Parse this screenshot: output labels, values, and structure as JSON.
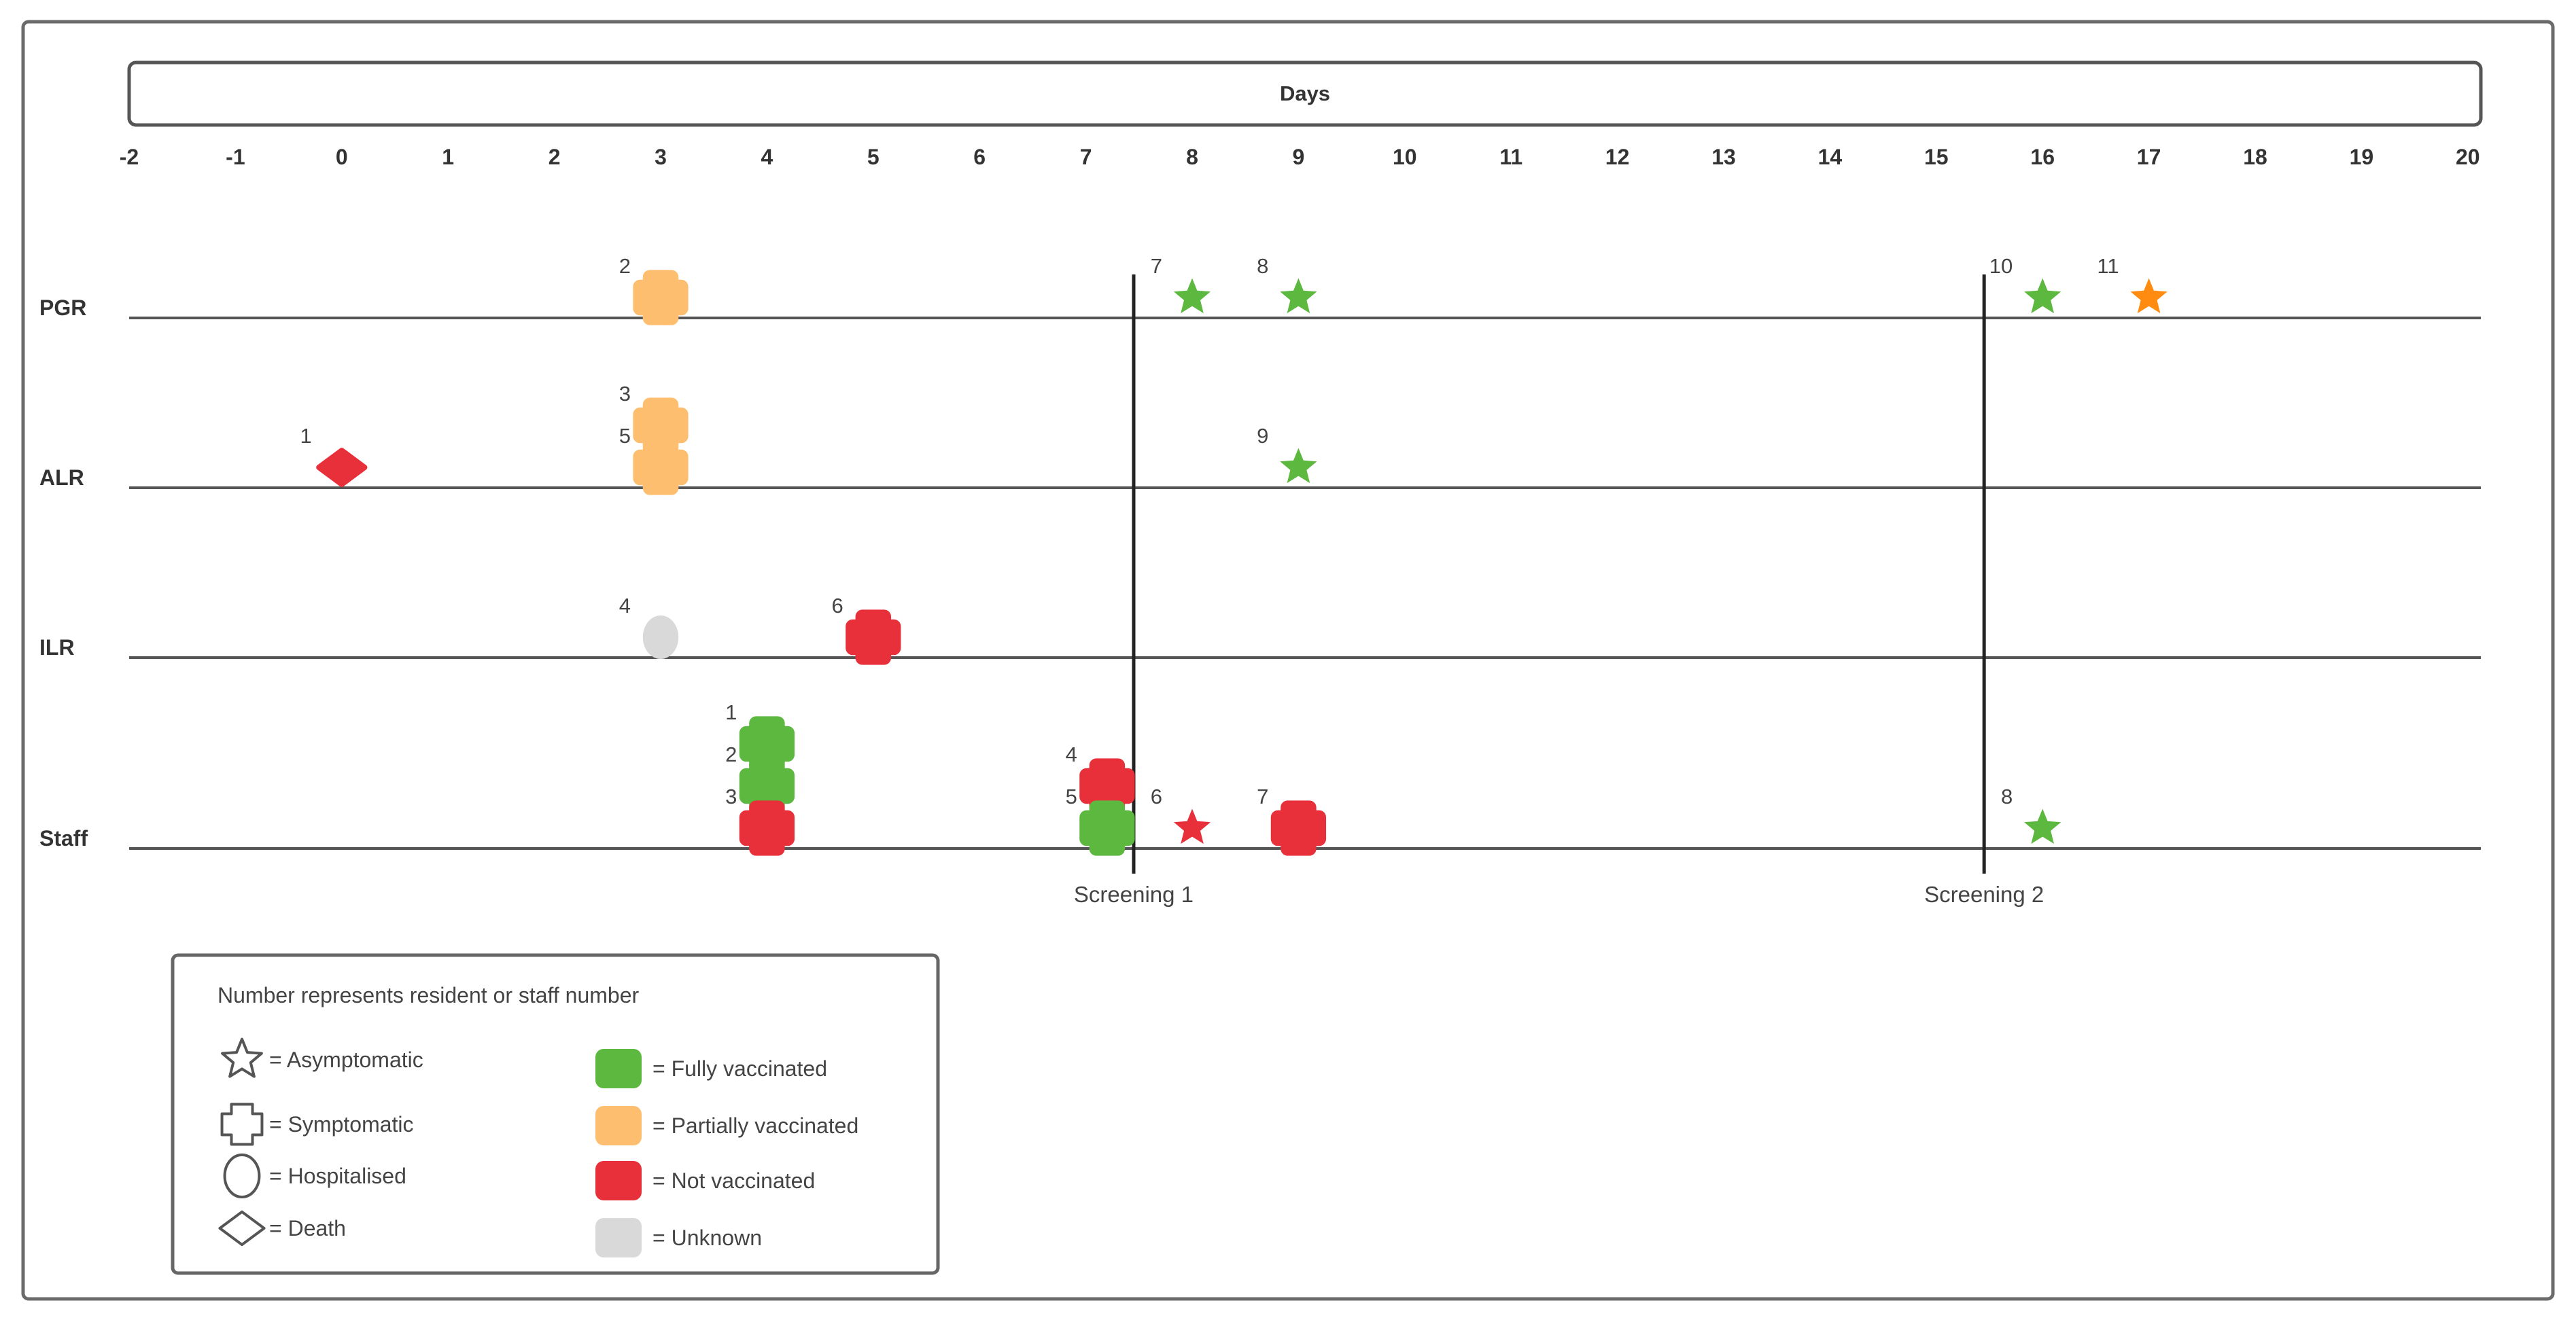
{
  "chart_data": {
    "type": "timeline",
    "title": "Days",
    "x_ticks": [
      "-2",
      "-1",
      "0",
      "1",
      "2",
      "3",
      "4",
      "5",
      "6",
      "7",
      "8",
      "9",
      "10",
      "11",
      "12",
      "13",
      "14",
      "15",
      "16",
      "17",
      "18",
      "19",
      "20"
    ],
    "xlim": [
      -2,
      20
    ],
    "rows": [
      "PGR",
      "ALR",
      "ILR",
      "Staff"
    ],
    "colors": {
      "fully": "#5cb83f",
      "partial": "#fdbf6f",
      "not": "#e8303a",
      "unknown": "#d9d9d9",
      "orange": "#ff8c10"
    },
    "points": [
      {
        "row": "PGR",
        "day": 3,
        "stack": 0,
        "shape": "symptomatic",
        "status": "partial",
        "label": "2"
      },
      {
        "row": "PGR",
        "day": 8,
        "stack": 0,
        "shape": "asymptomatic",
        "status": "fully",
        "label": "7"
      },
      {
        "row": "PGR",
        "day": 9,
        "stack": 0,
        "shape": "asymptomatic",
        "status": "fully",
        "label": "8"
      },
      {
        "row": "PGR",
        "day": 16,
        "stack": 0,
        "shape": "asymptomatic",
        "status": "fully",
        "label": "10"
      },
      {
        "row": "PGR",
        "day": 17,
        "stack": 0,
        "shape": "asymptomatic",
        "status": "orange",
        "label": "11"
      },
      {
        "row": "ALR",
        "day": 0,
        "stack": 0,
        "shape": "death",
        "status": "not",
        "label": "1"
      },
      {
        "row": "ALR",
        "day": 3,
        "stack": 1,
        "shape": "symptomatic",
        "status": "partial",
        "label": "3"
      },
      {
        "row": "ALR",
        "day": 3,
        "stack": 0,
        "shape": "symptomatic",
        "status": "partial",
        "label": "5"
      },
      {
        "row": "ALR",
        "day": 9,
        "stack": 0,
        "shape": "asymptomatic",
        "status": "fully",
        "label": "9"
      },
      {
        "row": "ILR",
        "day": 3,
        "stack": 0,
        "shape": "hospitalised",
        "status": "unknown",
        "label": "4"
      },
      {
        "row": "ILR",
        "day": 5,
        "stack": 0,
        "shape": "symptomatic",
        "status": "not",
        "label": "6"
      },
      {
        "row": "Staff",
        "day": 4,
        "stack": 2,
        "shape": "symptomatic",
        "status": "fully",
        "label": "1"
      },
      {
        "row": "Staff",
        "day": 4,
        "stack": 1,
        "shape": "symptomatic",
        "status": "fully",
        "label": "2"
      },
      {
        "row": "Staff",
        "day": 4,
        "stack": 0,
        "shape": "symptomatic",
        "status": "not",
        "label": "3"
      },
      {
        "row": "Staff",
        "day": 7.2,
        "stack": 1,
        "shape": "symptomatic",
        "status": "not",
        "label": "4"
      },
      {
        "row": "Staff",
        "day": 7.2,
        "stack": 0,
        "shape": "symptomatic",
        "status": "fully",
        "label": "5"
      },
      {
        "row": "Staff",
        "day": 8,
        "stack": 0,
        "shape": "asymptomatic",
        "status": "not",
        "label": "6"
      },
      {
        "row": "Staff",
        "day": 9,
        "stack": 0,
        "shape": "symptomatic",
        "status": "not",
        "label": "7"
      },
      {
        "row": "Staff",
        "day": 16,
        "stack": 0,
        "shape": "asymptomatic",
        "status": "fully",
        "label": "8"
      }
    ],
    "screenings": [
      {
        "day": 7.45,
        "label": "Screening 1"
      },
      {
        "day": 15.45,
        "label": "Screening 2"
      }
    ]
  },
  "legend": {
    "note": "Number represents resident or staff number",
    "shapes": [
      {
        "shape": "asymptomatic",
        "label": "= Asymptomatic"
      },
      {
        "shape": "symptomatic",
        "label": "= Symptomatic"
      },
      {
        "shape": "hospitalised",
        "label": "= Hospitalised"
      },
      {
        "shape": "death",
        "label": "= Death"
      }
    ],
    "colors": [
      {
        "status": "fully",
        "label": "= Fully vaccinated"
      },
      {
        "status": "partial",
        "label": "= Partially vaccinated"
      },
      {
        "status": "not",
        "label": "= Not vaccinated"
      },
      {
        "status": "unknown",
        "label": "= Unknown"
      }
    ]
  }
}
